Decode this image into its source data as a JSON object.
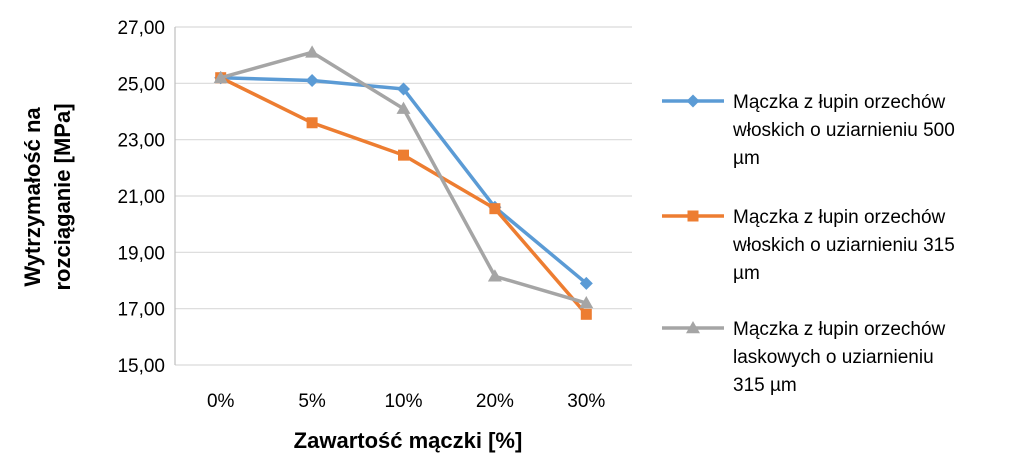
{
  "chart_data": {
    "type": "line",
    "categories": [
      "0%",
      "5%",
      "10%",
      "20%",
      "30%"
    ],
    "y_tick_labels": [
      "15,00",
      "17,00",
      "19,00",
      "21,00",
      "23,00",
      "25,00",
      "27,00"
    ],
    "ylim": [
      15,
      27
    ],
    "y_tick_step": 2,
    "grid": true,
    "legend_position": "right",
    "xlabel": "Zawartość mączki [%]",
    "ylabel_lines": [
      "Wytrzymałość na",
      "rozciąganie [MPa]"
    ],
    "series": [
      {
        "name_lines": [
          "Mączka z łupin orzechów",
          "włoskich o uziarnieniu 500",
          "µm"
        ],
        "color": "#5B9BD5",
        "marker": "diamond",
        "values": [
          25.2,
          25.1,
          24.8,
          20.6,
          17.9
        ]
      },
      {
        "name_lines": [
          "Mączka z łupin orzechów",
          "włoskich o uziarnieniu 315",
          "µm"
        ],
        "color": "#ED7D31",
        "marker": "square",
        "values": [
          25.2,
          23.6,
          22.45,
          20.55,
          16.8
        ]
      },
      {
        "name_lines": [
          "Mączka z łupin orzechów",
          "laskowych o uziarnieniu",
          "315 µm"
        ],
        "color": "#A5A5A5",
        "marker": "triangle",
        "values": [
          25.2,
          26.1,
          24.1,
          18.15,
          17.2
        ]
      }
    ]
  }
}
